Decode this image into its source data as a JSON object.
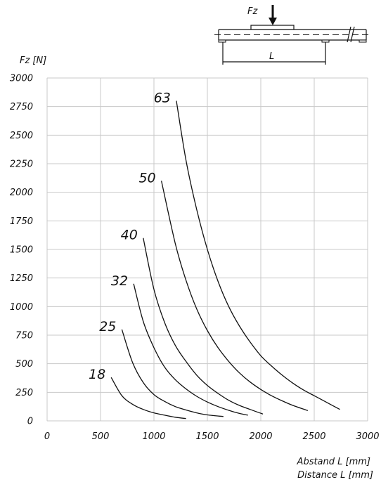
{
  "chart_data": {
    "type": "line",
    "ylabel": "Fz [N]",
    "xlabel_de": "Abstand L [mm]",
    "xlabel_en": "Distance L [mm]",
    "xlim": [
      0,
      3000
    ],
    "ylim": [
      0,
      3000
    ],
    "x_ticks": [
      "0",
      "500",
      "1000",
      "1500",
      "2000",
      "2500",
      "3000"
    ],
    "y_ticks": [
      "0",
      "250",
      "500",
      "750",
      "1000",
      "1250",
      "1500",
      "1750",
      "2000",
      "2250",
      "2500",
      "2750",
      "3000"
    ],
    "grid": true,
    "series": [
      {
        "name": "18",
        "x": [
          600,
          700,
          800,
          900,
          1000,
          1100,
          1200,
          1300
        ],
        "y": [
          380,
          220,
          145,
          100,
          70,
          50,
          32,
          20
        ]
      },
      {
        "name": "25",
        "x": [
          700,
          800,
          900,
          1000,
          1100,
          1200,
          1300,
          1400,
          1500,
          1650
        ],
        "y": [
          800,
          510,
          335,
          230,
          170,
          125,
          95,
          70,
          52,
          38
        ]
      },
      {
        "name": "32",
        "x": [
          810,
          900,
          1000,
          1100,
          1200,
          1300,
          1400,
          1500,
          1600,
          1700,
          1800,
          1880
        ],
        "y": [
          1200,
          870,
          640,
          470,
          360,
          280,
          215,
          165,
          125,
          92,
          65,
          50
        ]
      },
      {
        "name": "40",
        "x": [
          900,
          1000,
          1100,
          1200,
          1300,
          1400,
          1500,
          1600,
          1700,
          1800,
          1900,
          2020
        ],
        "y": [
          1600,
          1150,
          860,
          660,
          520,
          400,
          310,
          240,
          180,
          135,
          100,
          60
        ]
      },
      {
        "name": "50",
        "x": [
          1070,
          1200,
          1300,
          1400,
          1500,
          1600,
          1700,
          1800,
          1900,
          2000,
          2100,
          2200,
          2300,
          2440
        ],
        "y": [
          2100,
          1550,
          1230,
          980,
          790,
          640,
          520,
          420,
          340,
          275,
          220,
          175,
          135,
          90
        ]
      },
      {
        "name": "63",
        "x": [
          1210,
          1300,
          1400,
          1500,
          1600,
          1700,
          1800,
          1900,
          2000,
          2100,
          2200,
          2300,
          2400,
          2500,
          2600,
          2740
        ],
        "y": [
          2800,
          2280,
          1850,
          1500,
          1220,
          1000,
          830,
          690,
          570,
          480,
          400,
          330,
          270,
          220,
          170,
          100
        ]
      }
    ]
  },
  "diagram": {
    "force_label": "Fz",
    "length_label": "L"
  }
}
